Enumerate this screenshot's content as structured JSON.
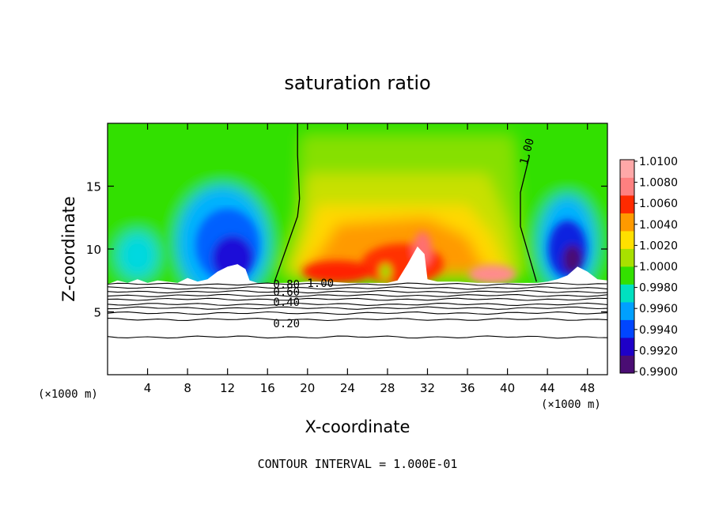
{
  "chart_data": {
    "type": "heatmap",
    "title": "saturation ratio",
    "xlabel": "X-coordinate",
    "ylabel": "Z-coordinate",
    "x_unit_left": "(×1000 m)",
    "x_unit_right": "(×1000 m)",
    "footer": "CONTOUR INTERVAL = 1.000E-01",
    "x_range": [
      0,
      50
    ],
    "y_range": [
      0,
      20
    ],
    "x_ticks": [
      4,
      8,
      12,
      16,
      20,
      24,
      28,
      32,
      36,
      40,
      44,
      48
    ],
    "x_tick_labels": [
      "4",
      "8",
      "12",
      "16",
      "20",
      "24",
      "28",
      "32",
      "36",
      "40",
      "44",
      "48"
    ],
    "y_ticks": [
      5,
      10,
      15
    ],
    "y_tick_labels": [
      "5",
      "10",
      "15"
    ],
    "colorbar": {
      "range": [
        0.99,
        1.01
      ],
      "levels": [
        0.99,
        0.992,
        0.994,
        0.996,
        0.998,
        1.0,
        1.002,
        1.004,
        1.006,
        1.008,
        1.01
      ],
      "labels": [
        "1.0100",
        "1.0080",
        "1.0060",
        "1.0040",
        "1.0020",
        "1.0000",
        "0.9980",
        "0.9960",
        "0.9940",
        "0.9920",
        "0.9900"
      ]
    },
    "contour_labels": [
      {
        "text": "1.00",
        "x": 42.3,
        "z": 18.0
      },
      {
        "text": "1.00",
        "x": 21.3,
        "z": 7.3
      },
      {
        "text": "0.80",
        "x": 17.9,
        "z": 7.2
      },
      {
        "text": "0.60",
        "x": 17.9,
        "z": 6.6
      },
      {
        "text": "0.40",
        "x": 17.9,
        "z": 5.8
      },
      {
        "text": "0.20",
        "x": 17.9,
        "z": 4.1
      }
    ],
    "contour_lines": [
      {
        "level": "1.00",
        "z_mean": 7.2
      },
      {
        "level": "0.90",
        "z_mean": 6.9
      },
      {
        "level": "0.80",
        "z_mean": 6.6
      },
      {
        "level": "0.70",
        "z_mean": 6.3
      },
      {
        "level": "0.60",
        "z_mean": 6.0
      },
      {
        "level": "0.50",
        "z_mean": 5.6
      },
      {
        "level": "0.40",
        "z_mean": 5.3
      },
      {
        "level": "0.30",
        "z_mean": 4.9
      },
      {
        "level": "0.20",
        "z_mean": 4.4
      },
      {
        "level": "0.10",
        "z_mean": 3.0
      }
    ],
    "s1_boundary_left": [
      [
        19.0,
        20.0
      ],
      [
        19.0,
        17.5
      ],
      [
        19.2,
        14.0
      ],
      [
        19.0,
        12.6
      ],
      [
        16.7,
        7.4
      ]
    ],
    "s1_boundary_right": [
      [
        42.2,
        17.4
      ],
      [
        41.3,
        14.5
      ],
      [
        41.3,
        11.8
      ],
      [
        42.9,
        7.4
      ]
    ]
  }
}
